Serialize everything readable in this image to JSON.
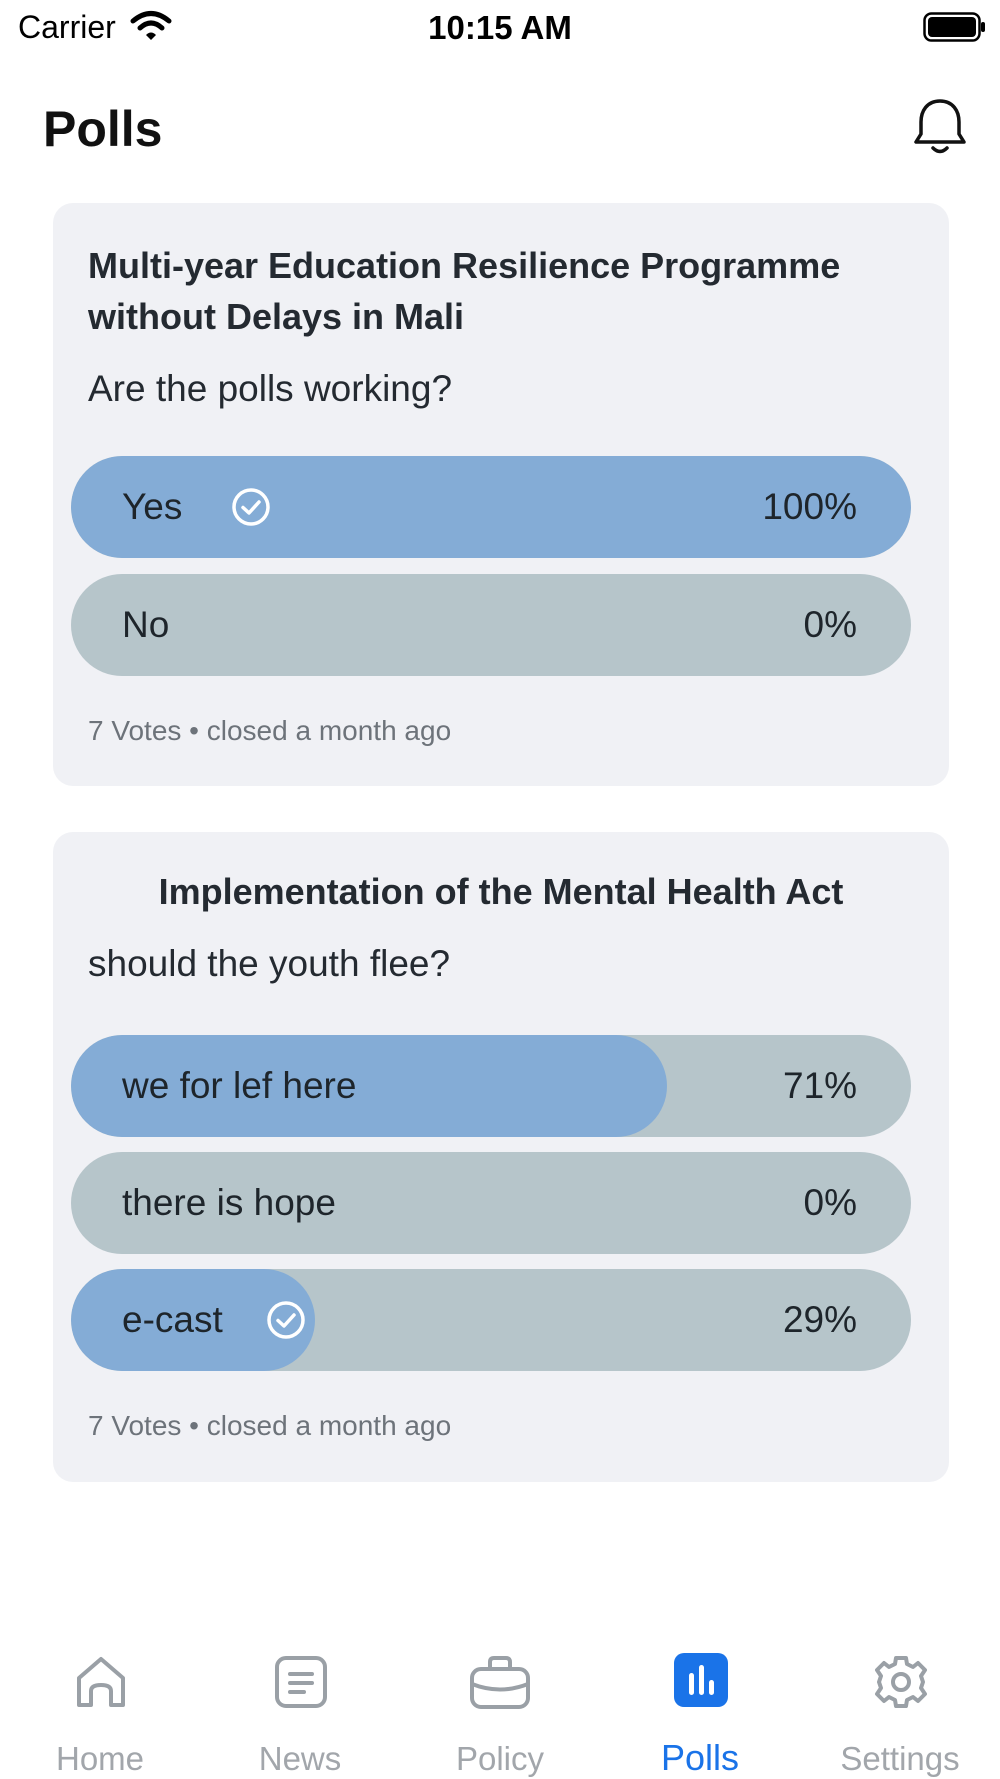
{
  "status_bar": {
    "carrier": "Carrier",
    "time": "10:15 AM"
  },
  "header": {
    "title": "Polls"
  },
  "polls": [
    {
      "title": "Multi-year Education Resilience Programme without Delays in Mali",
      "question": "Are the polls working?",
      "options": [
        {
          "label": "Yes",
          "percent": "100%",
          "fill_fraction": 1.0,
          "selected": true
        },
        {
          "label": "No",
          "percent": "0%",
          "fill_fraction": 0.0,
          "selected": false
        }
      ],
      "meta": "7 Votes • closed a month ago"
    },
    {
      "title": "Implementation of the Mental Health Act",
      "question": "should the youth flee?",
      "options": [
        {
          "label": "we for lef here",
          "percent": "71%",
          "fill_fraction": 0.71,
          "selected": false
        },
        {
          "label": "there is hope",
          "percent": "0%",
          "fill_fraction": 0.0,
          "selected": false
        },
        {
          "label": "e-cast",
          "percent": "29%",
          "fill_fraction": 0.29,
          "selected": true
        }
      ],
      "meta": "7 Votes • closed a month ago"
    }
  ],
  "tab_bar": {
    "tabs": [
      {
        "label": "Home",
        "icon": "home-icon",
        "active": false
      },
      {
        "label": "News",
        "icon": "news-icon",
        "active": false
      },
      {
        "label": "Policy",
        "icon": "briefcase-icon",
        "active": false
      },
      {
        "label": "Polls",
        "icon": "poll-chart-icon",
        "active": true
      },
      {
        "label": "Settings",
        "icon": "gear-icon",
        "active": false
      }
    ]
  },
  "colors": {
    "accent": "#1a73e8",
    "option_fill": "#84acd6",
    "option_track": "#b6c5ca",
    "card_background": "#f0f1f5"
  }
}
